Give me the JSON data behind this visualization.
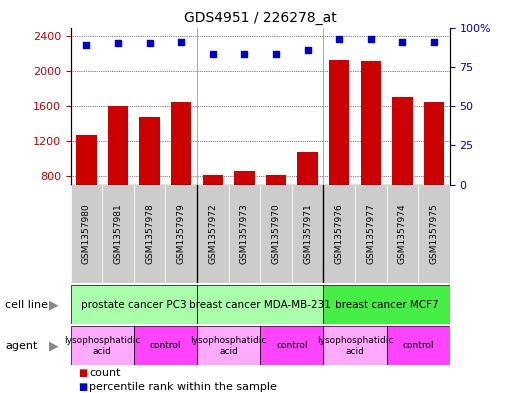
{
  "title": "GDS4951 / 226278_at",
  "samples": [
    "GSM1357980",
    "GSM1357981",
    "GSM1357978",
    "GSM1357979",
    "GSM1357972",
    "GSM1357973",
    "GSM1357970",
    "GSM1357971",
    "GSM1357976",
    "GSM1357977",
    "GSM1357974",
    "GSM1357975"
  ],
  "counts": [
    1270,
    1600,
    1470,
    1650,
    810,
    860,
    810,
    1070,
    2130,
    2120,
    1700,
    1650
  ],
  "percentiles": [
    89,
    90,
    90,
    91,
    83,
    83,
    83,
    86,
    93,
    93,
    91,
    91
  ],
  "ylim_left": [
    700,
    2500
  ],
  "ylim_right": [
    0,
    100
  ],
  "yticks_left": [
    800,
    1200,
    1600,
    2000,
    2400
  ],
  "yticks_right": [
    0,
    25,
    50,
    75,
    100
  ],
  "cell_lines": [
    {
      "label": "prostate cancer PC3",
      "start": 0,
      "end": 4,
      "color": "#aaffaa"
    },
    {
      "label": "breast cancer MDA-MB-231",
      "start": 4,
      "end": 8,
      "color": "#aaffaa"
    },
    {
      "label": "breast cancer MCF7",
      "start": 8,
      "end": 12,
      "color": "#44ee44"
    }
  ],
  "agents": [
    {
      "label": "lysophosphatidic\nacid",
      "start": 0,
      "end": 2,
      "color": "#ffaaff"
    },
    {
      "label": "control",
      "start": 2,
      "end": 4,
      "color": "#ff44ff"
    },
    {
      "label": "lysophosphatidic\nacid",
      "start": 4,
      "end": 6,
      "color": "#ffaaff"
    },
    {
      "label": "control",
      "start": 6,
      "end": 8,
      "color": "#ff44ff"
    },
    {
      "label": "lysophosphatidic\nacid",
      "start": 8,
      "end": 10,
      "color": "#ffaaff"
    },
    {
      "label": "control",
      "start": 10,
      "end": 12,
      "color": "#ff44ff"
    }
  ],
  "bar_color": "#cc0000",
  "dot_color": "#0000cc",
  "axis_color_left": "#cc0000",
  "axis_color_right": "#0000cc",
  "xticklabel_bg": "#cccccc",
  "group_boundary_color": "#888888"
}
